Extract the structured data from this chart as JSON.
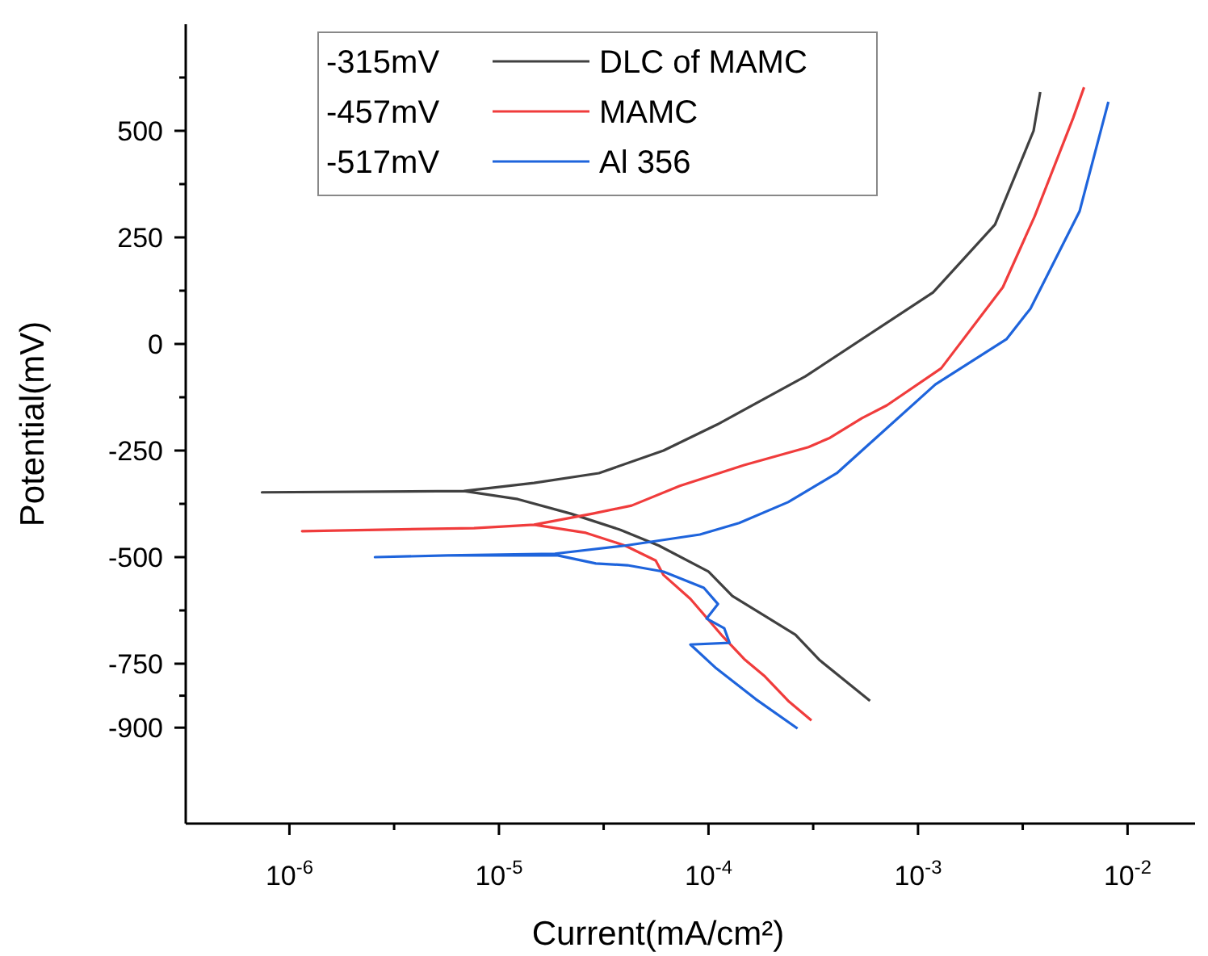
{
  "chart_data": {
    "type": "line",
    "xlabel": "Current(mA/cm²)",
    "ylabel": "Potential(mV)",
    "log": "x",
    "xlim": [
      3.2e-07,
      0.021
    ],
    "ylim": [
      -1125,
      750
    ],
    "xticks": [
      {
        "value": 1e-06,
        "label": "10$^{-6}$"
      },
      {
        "value": 3.16e-06,
        "label": null
      },
      {
        "value": 1e-05,
        "label": "10$^{-5}$"
      },
      {
        "value": 3.16e-05,
        "label": null
      },
      {
        "value": 0.0001,
        "label": "10$^{-4}$"
      },
      {
        "value": 0.000316,
        "label": null
      },
      {
        "value": 0.001,
        "label": "10$^{-3}$"
      },
      {
        "value": 0.00316,
        "label": null
      },
      {
        "value": 0.01,
        "label": "10$^{-2}$"
      }
    ],
    "yticks": [
      {
        "value": 625,
        "label": null
      },
      500,
      {
        "value": 375,
        "label": null
      },
      250,
      {
        "value": 125,
        "label": null
      },
      0,
      {
        "value": -125,
        "label": null
      },
      -250,
      {
        "value": -375,
        "label": null
      },
      -500,
      {
        "value": -625,
        "label": null
      },
      -750,
      {
        "value": -825,
        "label": null
      },
      -900
    ],
    "legend": "top",
    "annotations": [
      "-315mV",
      "-457mV",
      "-517mV"
    ],
    "series": [
      {
        "name": "DLC of MAMC",
        "color": "#404040",
        "x": [
          0.00059,
          0.00034,
          0.00026,
          0.00013,
          0.0001,
          5.8e-05,
          3.8e-05,
          2.2e-05,
          1.23e-05,
          6.8e-06,
          7.4e-07,
          6.8e-06,
          1.47e-05,
          3e-05,
          6.1e-05,
          0.00011,
          0.00029,
          0.00118,
          0.00233,
          0.00356,
          0.00383
        ],
        "values": [
          -837,
          -742,
          -682,
          -591,
          -534,
          -473,
          -436,
          -398,
          -364,
          -345,
          -348,
          -345,
          -326,
          -303,
          -250,
          -189,
          -76,
          121,
          280,
          500,
          591
        ]
      },
      {
        "name": "MAMC",
        "color": "#f03c3c",
        "x": [
          0.00031,
          0.00024,
          0.000186,
          0.000148,
          0.000117,
          8.2e-05,
          6.1e-05,
          5.6e-05,
          4e-05,
          2.6e-05,
          1.47e-05,
          7.6e-06,
          1.15e-06,
          7.6e-06,
          1.47e-05,
          2.8e-05,
          4.3e-05,
          7.3e-05,
          0.000148,
          0.0003,
          0.00038,
          0.00054,
          0.00071,
          0.00129,
          0.00254,
          0.0036,
          0.0055,
          0.0062
        ],
        "values": [
          -883,
          -837,
          -780,
          -739,
          -686,
          -598,
          -542,
          -508,
          -473,
          -443,
          -424,
          -432,
          -439,
          -432,
          -424,
          -398,
          -379,
          -333,
          -284,
          -242,
          -220,
          -174,
          -144,
          -57,
          133,
          299,
          530,
          602
        ]
      },
      {
        "name": "Al 356",
        "color": "#1e64dc",
        "x": [
          0.000266,
          0.000168,
          0.000109,
          8.2e-05,
          0.000126,
          0.000119,
          9.8e-05,
          0.000111,
          9.5e-05,
          6.1e-05,
          4.1e-05,
          2.9e-05,
          1.91e-05,
          5.7e-06,
          2.56e-06,
          5.7e-06,
          1.85e-05,
          4e-05,
          9.1e-05,
          0.00014,
          0.00024,
          0.00041,
          0.00054,
          0.00121,
          0.00264,
          0.00344,
          0.0059,
          0.0081
        ],
        "values": [
          -902,
          -833,
          -761,
          -705,
          -701,
          -667,
          -644,
          -610,
          -572,
          -534,
          -519,
          -515,
          -496,
          -496,
          -500,
          -496,
          -492,
          -473,
          -447,
          -420,
          -371,
          -303,
          -250,
          -95,
          11,
          83,
          311,
          568
        ]
      }
    ]
  }
}
